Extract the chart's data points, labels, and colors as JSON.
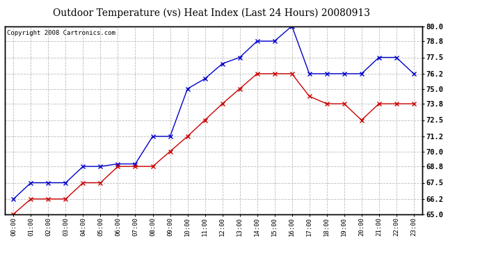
{
  "title": "Outdoor Temperature (vs) Heat Index (Last 24 Hours) 20080913",
  "copyright": "Copyright 2008 Cartronics.com",
  "x_labels": [
    "00:00",
    "01:00",
    "02:00",
    "03:00",
    "04:00",
    "05:00",
    "06:00",
    "07:00",
    "08:00",
    "09:00",
    "10:00",
    "11:00",
    "12:00",
    "13:00",
    "14:00",
    "15:00",
    "16:00",
    "17:00",
    "18:00",
    "19:00",
    "20:00",
    "21:00",
    "22:00",
    "23:00"
  ],
  "temp_blue": [
    66.2,
    67.5,
    67.5,
    67.5,
    68.8,
    68.8,
    69.0,
    69.0,
    71.2,
    71.2,
    75.0,
    75.8,
    77.0,
    77.5,
    78.8,
    78.8,
    80.0,
    76.2,
    76.2,
    76.2,
    76.2,
    77.5,
    77.5,
    76.2
  ],
  "heat_red": [
    65.0,
    66.2,
    66.2,
    66.2,
    67.5,
    67.5,
    68.8,
    68.8,
    68.8,
    70.0,
    71.2,
    72.5,
    73.8,
    75.0,
    76.2,
    76.2,
    76.2,
    74.4,
    73.8,
    73.8,
    72.5,
    73.8,
    73.8,
    73.8
  ],
  "blue_color": "#0000CC",
  "red_color": "#CC0000",
  "bg_color": "#FFFFFF",
  "plot_bg_color": "#FFFFFF",
  "grid_color": "#BBBBBB",
  "ylim": [
    65.0,
    80.0
  ],
  "yticks": [
    65.0,
    66.2,
    67.5,
    68.8,
    70.0,
    71.2,
    72.5,
    73.8,
    75.0,
    76.2,
    77.5,
    78.8,
    80.0
  ],
  "title_fontsize": 10,
  "copyright_fontsize": 6.5
}
